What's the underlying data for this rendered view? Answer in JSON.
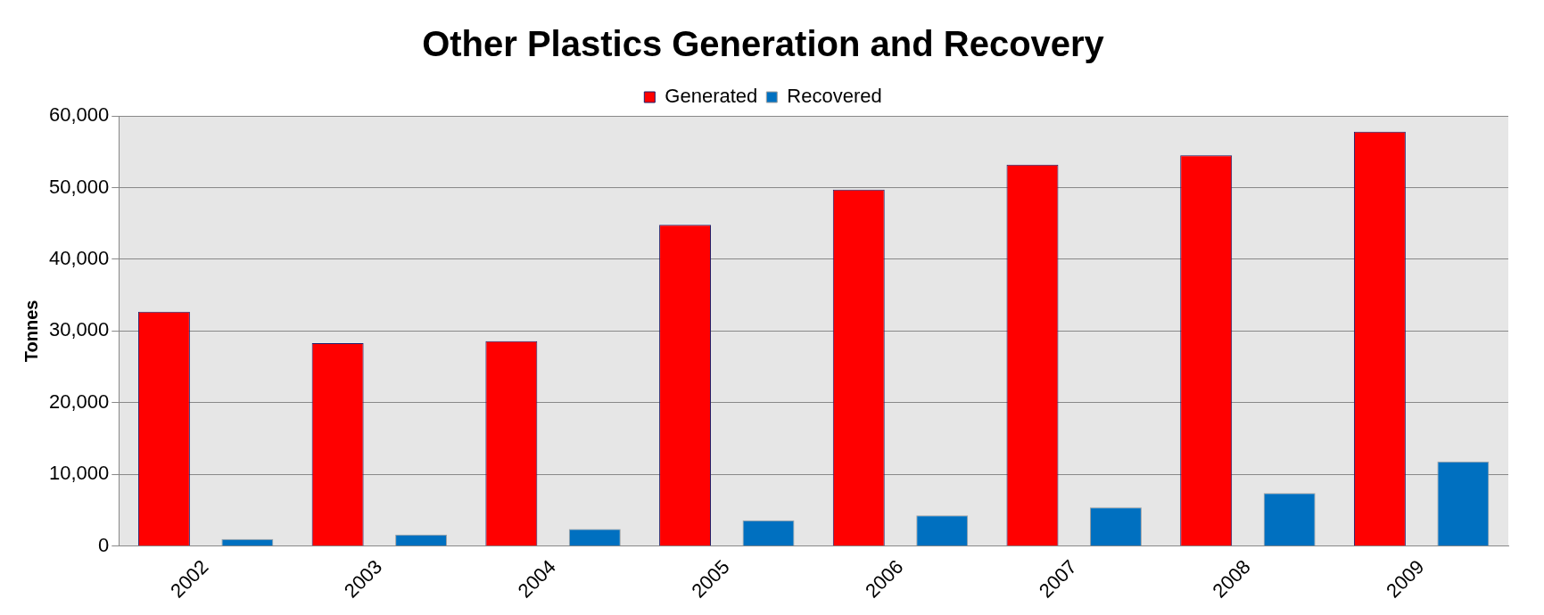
{
  "chart_data": {
    "type": "bar",
    "title": "Other Plastics Generation and Recovery",
    "ylabel": "Tonnes",
    "categories": [
      "2002",
      "2003",
      "2004",
      "2005",
      "2006",
      "2007",
      "2008",
      "2009"
    ],
    "series": [
      {
        "name": "Generated",
        "color": "#ff0000",
        "values": [
          32700,
          28300,
          28600,
          44800,
          49700,
          53200,
          54500,
          57800
        ]
      },
      {
        "name": "Recovered",
        "color": "#0070c0",
        "values": [
          1000,
          1600,
          2400,
          3600,
          4300,
          5400,
          7400,
          11800
        ]
      }
    ],
    "ylim": [
      0,
      60000
    ],
    "yticks": [
      0,
      {
        "value": 10000,
        "label": "10,000"
      },
      {
        "value": 20000,
        "label": "20,000"
      },
      {
        "value": 30000,
        "label": "30,000"
      },
      {
        "value": 40000,
        "label": "40,000"
      },
      {
        "value": 50000,
        "label": "50,000"
      },
      {
        "value": 60000,
        "label": "60,000"
      }
    ],
    "grid": "y",
    "legend": "top"
  }
}
